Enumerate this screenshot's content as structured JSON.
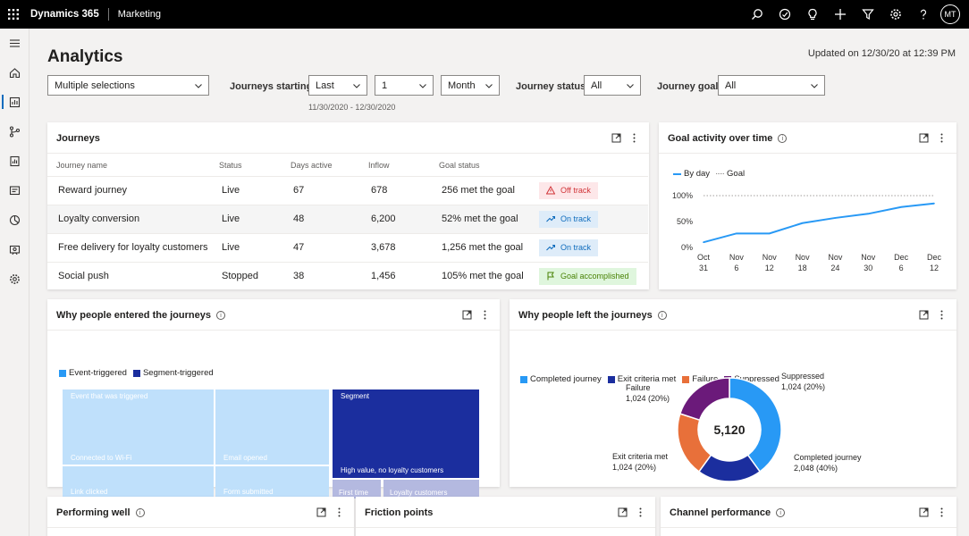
{
  "topbar": {
    "brand": "Dynamics 365",
    "app": "Marketing",
    "avatar": "MT",
    "icons": [
      "search-icon",
      "target-icon",
      "lightbulb-icon",
      "plus-icon",
      "filter-icon",
      "gear-icon",
      "help-icon"
    ]
  },
  "nav": {
    "items": [
      "menu-icon",
      "home-icon",
      "analytics-icon",
      "journey-icon",
      "reports-icon",
      "forms-icon",
      "segments-icon",
      "events-icon",
      "settings-icon"
    ],
    "active": "analytics-icon"
  },
  "page": {
    "title": "Analytics",
    "updated": "Updated on 12/30/20 at 12:39 PM"
  },
  "filters": {
    "selection": "Multiple selections",
    "journeys_starting_label": "Journeys starting",
    "period": "Last",
    "count": "1",
    "unit": "Month",
    "date_range": "11/30/2020 - 12/30/2020",
    "status_label": "Journey status",
    "status": "All",
    "goal_label": "Journey goal",
    "goal": "All"
  },
  "journeys": {
    "title": "Journeys",
    "columns": [
      "Journey name",
      "Status",
      "Days active",
      "Inflow",
      "Goal status"
    ],
    "rows": [
      {
        "name": "Reward journey",
        "status": "Live",
        "days": "67",
        "inflow": "678",
        "goal": "256 met the goal",
        "badge": "Off track",
        "badge_type": "off"
      },
      {
        "name": "Loyalty conversion",
        "status": "Live",
        "days": "48",
        "inflow": "6,200",
        "goal": "52% met the goal",
        "badge": "On track",
        "badge_type": "on"
      },
      {
        "name": "Free delivery for loyalty customers",
        "status": "Live",
        "days": "47",
        "inflow": "3,678",
        "goal": "1,256 met the goal",
        "badge": "On track",
        "badge_type": "on"
      },
      {
        "name": "Social push",
        "status": "Stopped",
        "days": "38",
        "inflow": "1,456",
        "goal": "105% met the goal",
        "badge": "Goal accomplished",
        "badge_type": "acc"
      }
    ]
  },
  "goal_activity": {
    "title": "Goal activity over time",
    "legend_by_day": "By day",
    "legend_goal": "Goal",
    "y_ticks": [
      "100%",
      "50%",
      "0%"
    ],
    "x_months": [
      "Oct",
      "Nov",
      "Nov",
      "Nov",
      "Nov",
      "Nov",
      "Dec",
      "Dec"
    ],
    "x_days": [
      "31",
      "6",
      "12",
      "18",
      "24",
      "30",
      "6",
      "12"
    ]
  },
  "entered": {
    "title": "Why people entered the journeys",
    "legend": [
      {
        "label": "Event-triggered",
        "color": "#2899f5"
      },
      {
        "label": "Segment-triggered",
        "color": "#1b2e9e"
      }
    ],
    "cells": {
      "event_triggered": "Event that was triggered",
      "connected": "Connected to Wi-Fi",
      "email_opened": "Email opened",
      "link_clicked": "Link clicked",
      "form_submitted": "Form submitted",
      "segment": "Segment",
      "high_value": "High value, no loyalty customers",
      "first_time": "First time",
      "loyalty": "Loyalty customers"
    }
  },
  "left": {
    "title": "Why people left the journeys",
    "legend": [
      {
        "label": "Completed journey",
        "color": "#2899f5"
      },
      {
        "label": "Exit criteria met",
        "color": "#1b2e9e"
      },
      {
        "label": "Failure",
        "color": "#e8703a"
      },
      {
        "label": "Suppressed",
        "color": "#6b1a7a"
      }
    ],
    "total": "5,120",
    "labels": {
      "suppressed": "Suppressed",
      "suppressed_val": "1,024 (20%)",
      "failure": "Failure",
      "failure_val": "1,024 (20%)",
      "exit": "Exit criteria met",
      "exit_val": "1,024 (20%)",
      "completed": "Completed journey",
      "completed_val": "2,048 (40%)"
    }
  },
  "chart_data": [
    {
      "type": "line",
      "title": "Goal activity over time",
      "x": [
        "Oct 31",
        "Nov 6",
        "Nov 12",
        "Nov 18",
        "Nov 24",
        "Nov 30",
        "Dec 6",
        "Dec 12"
      ],
      "series": [
        {
          "name": "By day",
          "values": [
            10,
            27,
            27,
            47,
            57,
            65,
            78,
            85
          ]
        },
        {
          "name": "Goal",
          "values": [
            100,
            100,
            100,
            100,
            100,
            100,
            100,
            100
          ]
        }
      ],
      "yticks": [
        "100%",
        "50%",
        "0%"
      ],
      "ylim": [
        0,
        100
      ]
    },
    {
      "type": "pie",
      "title": "Why people left the journeys",
      "categories": [
        "Completed journey",
        "Exit criteria met",
        "Failure",
        "Suppressed"
      ],
      "values": [
        2048,
        1024,
        1024,
        1024
      ]
    }
  ],
  "bottom_cards": {
    "performing": "Performing well",
    "friction": "Friction points",
    "channel": "Channel performance"
  }
}
